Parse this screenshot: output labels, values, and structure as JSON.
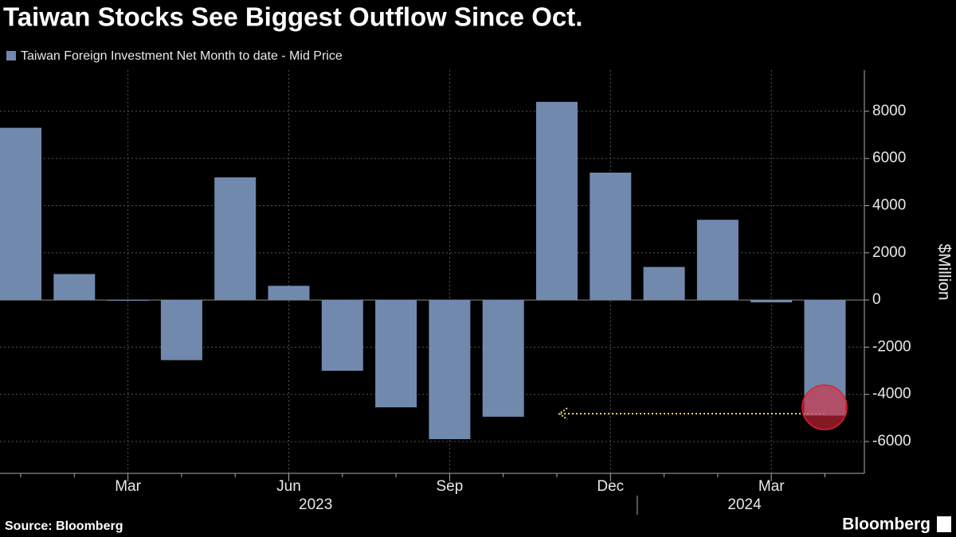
{
  "chart_data": {
    "type": "bar",
    "title": "Taiwan Stocks See Biggest Outflow Since Oct.",
    "series": [
      {
        "name": "Taiwan Foreign Investment Net Month to date - Mid Price",
        "color": "#7189ad",
        "values": [
          7300,
          1100,
          -30,
          -2550,
          5200,
          600,
          -3000,
          -4550,
          -5900,
          -4950,
          8400,
          5400,
          1400,
          3400,
          -100,
          -4900
        ]
      }
    ],
    "categories": [
      null,
      null,
      "Mar",
      null,
      null,
      "Jun",
      null,
      null,
      "Sep",
      null,
      null,
      "Dec",
      null,
      null,
      "Mar",
      null
    ],
    "x_groups": [
      "2023",
      "2024"
    ],
    "y_label": "$Million",
    "ylim": [
      -7350,
      9750
    ],
    "yticks": [
      -6000,
      -4000,
      -2000,
      0,
      2000,
      4000,
      6000,
      8000
    ],
    "grid": true,
    "source": "Source: Bloomberg",
    "brand": "Bloomberg"
  }
}
